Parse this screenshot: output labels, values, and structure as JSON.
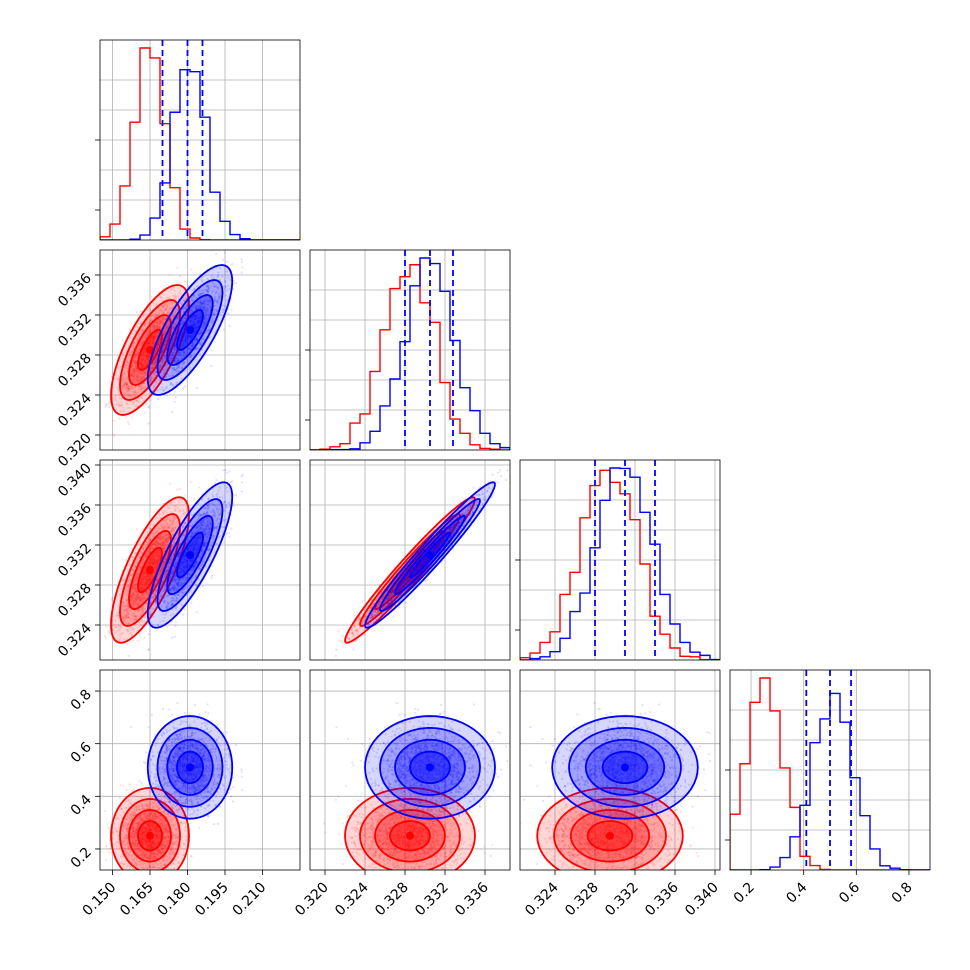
{
  "chart_data": {
    "type": "corner",
    "grid": true,
    "legend": "none",
    "colors": {
      "series_a": "#ff0000",
      "series_b": "#0000ff",
      "grid": "#b0b0b0",
      "axes": "#000000"
    },
    "series": [
      {
        "color_key": "series_a",
        "means": [
          0.165,
          0.3285,
          0.3295,
          0.25
        ],
        "sds": [
          0.006,
          0.0025,
          0.0028,
          0.07
        ],
        "correlations": [
          [
            0,
            1,
            0.7
          ],
          [
            0,
            2,
            0.75
          ],
          [
            1,
            2,
            0.97
          ]
        ]
      },
      {
        "color_key": "series_b",
        "means": [
          0.181,
          0.3305,
          0.331,
          0.51
        ],
        "sds": [
          0.0065,
          0.0025,
          0.0028,
          0.075
        ],
        "correlations": [
          [
            0,
            1,
            0.75
          ],
          [
            0,
            2,
            0.8
          ],
          [
            1,
            2,
            0.97
          ]
        ]
      }
    ],
    "quantile_lines": [
      {
        "dim": 0,
        "values": [
          0.17,
          0.18,
          0.186
        ]
      },
      {
        "dim": 1,
        "values": [
          0.328,
          0.3305,
          0.3328
        ]
      },
      {
        "dim": 2,
        "values": [
          0.328,
          0.331,
          0.334
        ]
      },
      {
        "dim": 3,
        "values": [
          0.41,
          0.5,
          0.58
        ]
      }
    ],
    "axes": [
      {
        "range": [
          0.145,
          0.225
        ],
        "ticks": [
          0.15,
          0.165,
          0.18,
          0.195,
          0.21
        ],
        "tick_labels": [
          "0.150",
          "0.165",
          "0.180",
          "0.195",
          "0.210"
        ]
      },
      {
        "range": [
          0.3185,
          0.3385
        ],
        "ticks": [
          0.32,
          0.324,
          0.328,
          0.332,
          0.336
        ],
        "tick_labels": [
          "0.320",
          "0.324",
          "0.328",
          "0.332",
          "0.336"
        ]
      },
      {
        "range": [
          0.3205,
          0.3405
        ],
        "ticks": [
          0.324,
          0.328,
          0.332,
          0.336,
          0.34
        ],
        "tick_labels": [
          "0.324",
          "0.328",
          "0.332",
          "0.336",
          "0.340"
        ]
      },
      {
        "range": [
          0.12,
          0.88
        ],
        "ticks": [
          0.2,
          0.4,
          0.6,
          0.8
        ],
        "tick_labels": [
          "0.2",
          "0.4",
          "0.6",
          "0.8"
        ]
      }
    ]
  }
}
